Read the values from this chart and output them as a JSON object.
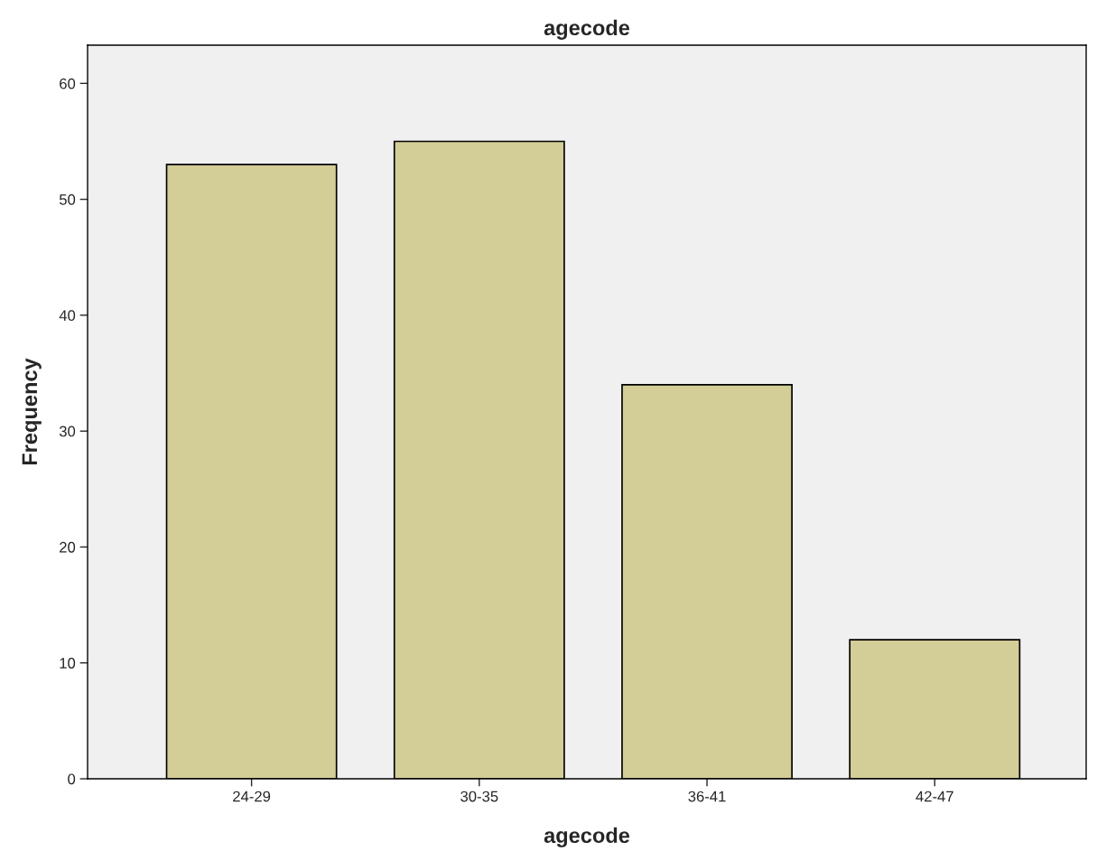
{
  "chart_data": {
    "type": "bar",
    "title": "agecode",
    "xlabel": "agecode",
    "ylabel": "Frequency",
    "categories": [
      "24-29",
      "30-35",
      "36-41",
      "42-47"
    ],
    "values": [
      53,
      55,
      34,
      12
    ],
    "color": "#d3ce97",
    "ylim": [
      0,
      63.3
    ],
    "yticks": [
      0,
      10,
      20,
      30,
      40,
      50,
      60
    ],
    "grid": false,
    "legend": false
  }
}
